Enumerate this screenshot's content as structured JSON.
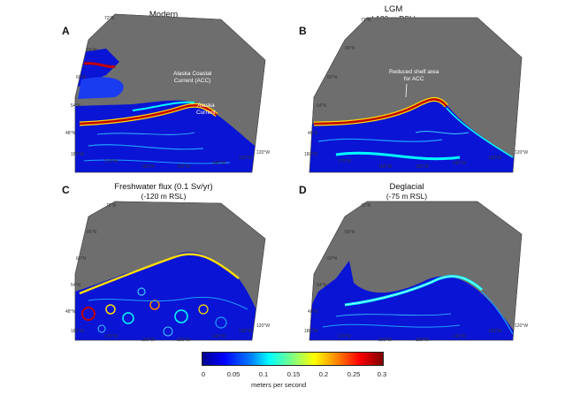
{
  "panels": [
    {
      "letter": "A",
      "title": "Modern",
      "subtitle": "",
      "lats": [
        "72°N",
        "66°N",
        "60°N",
        "54°N",
        "48°N"
      ],
      "lons": [
        "180°W",
        "170°W",
        "160°W",
        "150°W",
        "140°W",
        "130°W",
        "120°W"
      ],
      "annotations": [
        "Alaska Coastal",
        "Current (ACC)",
        "Alaska",
        "Current"
      ]
    },
    {
      "letter": "B",
      "title": "LGM",
      "subtitle": "(-120 m RSL)",
      "lats": [
        "72°N",
        "66°N",
        "60°N",
        "54°N",
        "48°N"
      ],
      "lons": [
        "180°W",
        "170°W",
        "160°W",
        "150°W",
        "140°W",
        "130°W",
        "120°W"
      ],
      "annotations": [
        "Reduced shelf area",
        "for ACC"
      ]
    },
    {
      "letter": "C",
      "title": "Freshwater flux (0.1 Sv/yr)",
      "subtitle": "(-120 m RSL)",
      "lats": [
        "72°N",
        "66°N",
        "60°N",
        "54°N",
        "48°N"
      ],
      "lons": [
        "180°W",
        "170°W",
        "160°W",
        "150°W",
        "140°W",
        "130°W",
        "120°W"
      ],
      "annotations": []
    },
    {
      "letter": "D",
      "title": "Deglacial",
      "subtitle": "(-75 m RSL)",
      "lats": [
        "72°N",
        "66°N",
        "60°N",
        "54°N",
        "48°N"
      ],
      "lons": [
        "180°W",
        "170°W",
        "160°W",
        "150°W",
        "140°W",
        "130°W",
        "120°W"
      ],
      "annotations": []
    }
  ],
  "colorbar": {
    "ticks": [
      "0",
      "0.05",
      "0.1",
      "0.15",
      "0.2",
      "0.25",
      "0.3"
    ],
    "label": "meters per second"
  },
  "colors": {
    "land": "#6e6e6e",
    "ocean_low": "#0000c8",
    "current_high": "#c00000",
    "accent_cyan": "#00ffff"
  }
}
